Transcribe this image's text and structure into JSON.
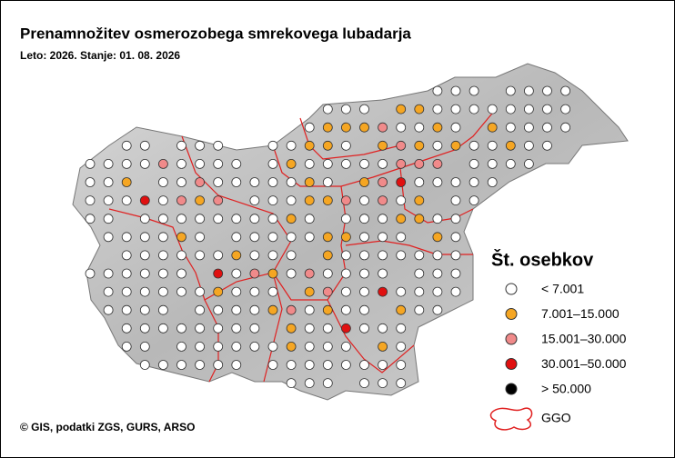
{
  "header": {
    "title": "Prenamnožitev osmerozobega smrekovega lubadarja",
    "subtitle": "Leto: 2026. Stanje: 01. 08. 2026"
  },
  "legend": {
    "title": "Št. osebkov",
    "items": [
      {
        "label": "< 7.001",
        "color": "#ffffff"
      },
      {
        "label": "7.001–15.000",
        "color": "#f5a623"
      },
      {
        "label": "15.001–30.000",
        "color": "#f08a8a"
      },
      {
        "label": "30.001–50.000",
        "color": "#e01010"
      },
      {
        "label": "> 50.000",
        "color": "#000000"
      }
    ],
    "boundary_label": "GGO"
  },
  "credit": "© GIS, podatki ZGS, GURS, ARSO"
}
